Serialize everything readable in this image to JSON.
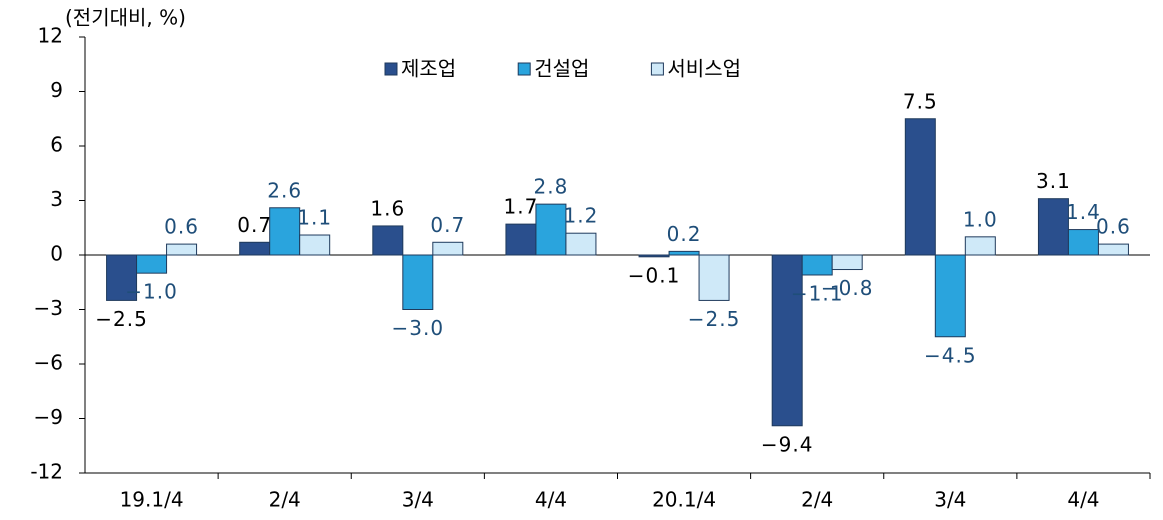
{
  "chart_data": {
    "type": "bar",
    "unit_label": "(전기대비, %)",
    "categories": [
      "19.1/4",
      "2/4",
      "3/4",
      "4/4",
      "20.1/4",
      "2/4",
      "3/4",
      "4/4"
    ],
    "series": [
      {
        "name": "제조업",
        "color": "#2a4f8d",
        "values": [
          -2.5,
          0.7,
          1.6,
          1.7,
          -0.1,
          -9.4,
          7.5,
          3.1
        ],
        "value_labels": [
          "−2.5",
          "0.7",
          "1.6",
          "1.7",
          "−0.1",
          "−9.4",
          "7.5",
          "3.1"
        ]
      },
      {
        "name": "건설업",
        "color": "#2aa4dd",
        "values": [
          -1.0,
          2.6,
          -3.0,
          2.8,
          0.2,
          -1.1,
          -4.5,
          1.4
        ],
        "value_labels": [
          "−1.0",
          "2.6",
          "−3.0",
          "2.8",
          "0.2",
          "−1.1",
          "−4.5",
          "1.4"
        ]
      },
      {
        "name": "서비스업",
        "color": "#cfe9f8",
        "values": [
          0.6,
          1.1,
          0.7,
          1.2,
          -2.5,
          -0.8,
          1.0,
          0.6
        ],
        "value_labels": [
          "0.6",
          "1.1",
          "0.7",
          "1.2",
          "−2.5",
          "−0.8",
          "1.0",
          "0.6"
        ]
      }
    ],
    "ylim": [
      -12,
      12
    ],
    "yticks": [
      {
        "value": -12,
        "label": "-12"
      },
      {
        "value": -9,
        "label": "−9"
      },
      {
        "value": -6,
        "label": "−6"
      },
      {
        "value": -3,
        "label": "−3"
      },
      0,
      3,
      6,
      9,
      12
    ],
    "grid": false,
    "legend": "top"
  }
}
